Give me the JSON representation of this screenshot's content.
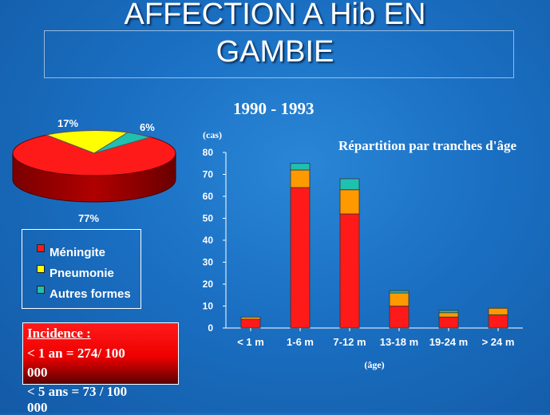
{
  "title_line1": "AFFECTION A Hib EN",
  "title_line2": "GAMBIE",
  "period": "1990 - 1993",
  "pie": {
    "slices": [
      {
        "label": "Méningite",
        "percent": 77,
        "percent_label": "77%",
        "color": "#ff1a1a"
      },
      {
        "label": "Pneumonie",
        "percent": 17,
        "percent_label": "17%",
        "color": "#ffff00"
      },
      {
        "label": "Autres formes",
        "percent": 6,
        "percent_label": "6%",
        "color": "#20c0b0"
      }
    ]
  },
  "legend": [
    {
      "label": "Méningite",
      "color": "#ff1a1a"
    },
    {
      "label": "Pneumonie",
      "color": "#ffff00"
    },
    {
      "label": "Autres formes",
      "color": "#20c0b0"
    }
  ],
  "incidence": {
    "heading": "Incidence :",
    "line1": "< 1 an  = 274/ 100",
    "line2": "000",
    "line3": "< 5 ans =  73 / 100",
    "line4": "000"
  },
  "chart_data": {
    "type": "bar",
    "stacked": true,
    "title": "Répartition par tranches d'âge",
    "ylabel": "(cas)",
    "xlabel": "(âge)",
    "ylim": [
      0,
      80
    ],
    "yticks": [
      0,
      10,
      20,
      30,
      40,
      50,
      60,
      70,
      80
    ],
    "categories": [
      "< 1 m",
      "1-6 m",
      "7-12 m",
      "13-18 m",
      "19-24 m",
      "> 24 m"
    ],
    "series": [
      {
        "name": "Méningite",
        "color": "#ff1a1a",
        "values": [
          4,
          64,
          52,
          10,
          5,
          6
        ]
      },
      {
        "name": "Pneumonie",
        "color": "#ff9900",
        "values": [
          1,
          8,
          11,
          6,
          2,
          3
        ]
      },
      {
        "name": "Autres formes",
        "color": "#20c0b0",
        "values": [
          0,
          3,
          5,
          1,
          1,
          0
        ]
      }
    ]
  }
}
